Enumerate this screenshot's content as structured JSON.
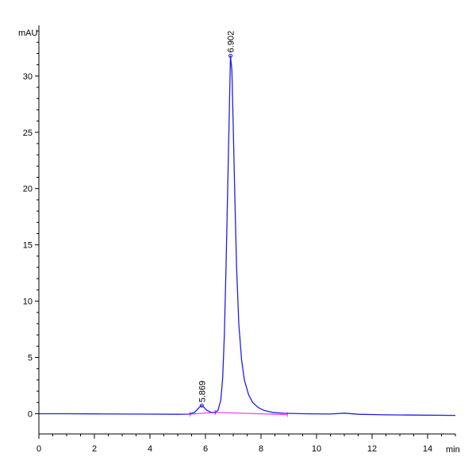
{
  "chart_data": {
    "type": "line",
    "ylabel": "mAU",
    "xlabel": "min",
    "xlim": [
      0,
      15
    ],
    "ylim": [
      -1.8,
      34.5
    ],
    "x_ticks": [
      0,
      2,
      4,
      6,
      8,
      10,
      12,
      14
    ],
    "y_ticks": [
      0,
      5,
      10,
      15,
      20,
      25,
      30
    ],
    "grid": false,
    "colors": {
      "trace": "#1f1fe6",
      "baseline": "#ff33ff",
      "axis": "#000000"
    },
    "series": [
      {
        "x": [
          0,
          1,
          2,
          3,
          4,
          5,
          5.4,
          5.6,
          5.7,
          5.8,
          5.87,
          5.95,
          6.05,
          6.2,
          6.35,
          6.45,
          6.55,
          6.62,
          6.68,
          6.74,
          6.8,
          6.85,
          6.9,
          6.95,
          7.0,
          7.06,
          7.12,
          7.2,
          7.3,
          7.4,
          7.55,
          7.7,
          7.9,
          8.1,
          8.4,
          8.8,
          9.5,
          10.5,
          11.0,
          11.5,
          12.5,
          13.5,
          15.0
        ],
        "values": [
          0.0,
          0.0,
          -0.02,
          -0.03,
          -0.04,
          -0.05,
          -0.04,
          0.1,
          0.35,
          0.62,
          0.72,
          0.55,
          0.3,
          0.12,
          0.1,
          0.3,
          1.2,
          3.2,
          7.0,
          13.0,
          20.0,
          26.0,
          31.8,
          30.5,
          25.5,
          19.0,
          13.0,
          8.0,
          4.8,
          3.0,
          1.7,
          1.0,
          0.55,
          0.3,
          0.12,
          0.04,
          0.0,
          -0.03,
          0.05,
          -0.05,
          -0.1,
          -0.12,
          -0.15
        ]
      }
    ],
    "baseline_segments": [
      {
        "x": [
          5.45,
          6.35
        ],
        "values": [
          -0.04,
          0.12
        ]
      },
      {
        "x": [
          6.35,
          8.95
        ],
        "values": [
          0.12,
          -0.08
        ]
      }
    ],
    "peaks": [
      {
        "label": "5.869",
        "x": 5.869,
        "y": 0.72
      },
      {
        "label": "6.902",
        "x": 6.902,
        "y": 31.8
      }
    ]
  }
}
